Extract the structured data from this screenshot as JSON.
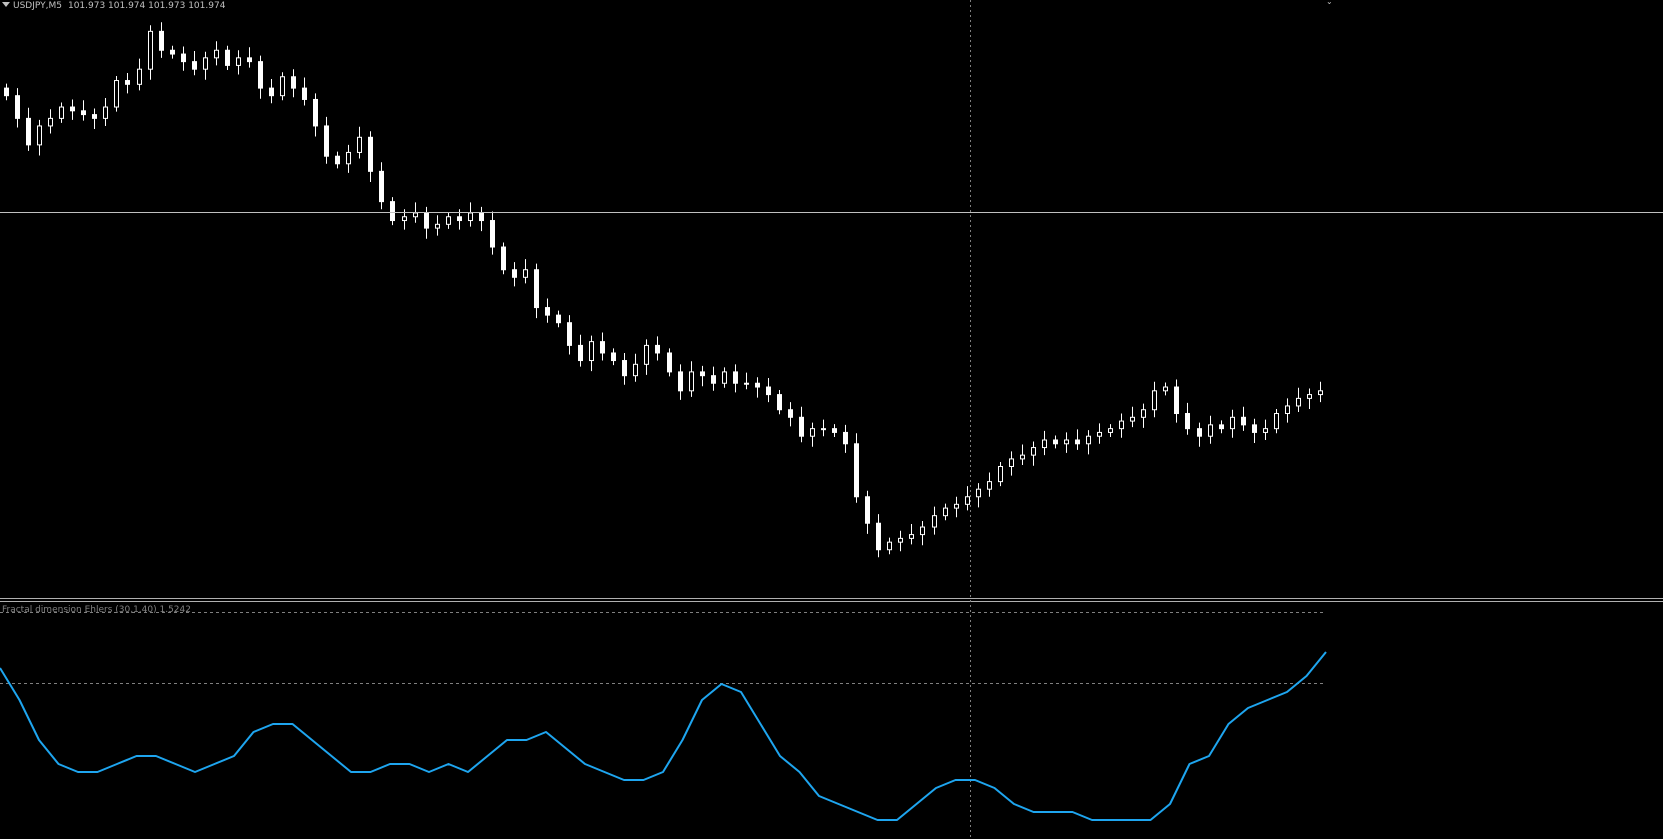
{
  "window": {
    "symbol_timeframe": "USDJPY,M5",
    "prices": "101.973 101.974 101.973 101.974"
  },
  "indicator": {
    "label": "Fractal dimension Ehlers (30,1.40) 1.5242",
    "line_color": "#1ea5ef"
  },
  "colors": {
    "background": "#000000",
    "candle": "#ffffff",
    "grid": "#808080",
    "bid_line": "#c0c0c0"
  },
  "icons": {
    "menu": "triangle-down-icon",
    "corner": "scroll-marker-icon"
  },
  "chart_data": [
    {
      "type": "candlestick",
      "title": "USDJPY,M5",
      "close_series": [
        102.28,
        102.22,
        102.15,
        102.2,
        102.22,
        102.25,
        102.24,
        102.23,
        102.22,
        102.25,
        102.32,
        102.31,
        102.35,
        102.45,
        102.4,
        102.39,
        102.37,
        102.35,
        102.38,
        102.4,
        102.36,
        102.38,
        102.37,
        102.3,
        102.28,
        102.33,
        102.3,
        102.27,
        102.2,
        102.12,
        102.1,
        102.13,
        102.17,
        102.08,
        102.0,
        101.95,
        101.96,
        101.97,
        101.93,
        101.94,
        101.96,
        101.95,
        101.97,
        101.95,
        101.88,
        101.82,
        101.8,
        101.82,
        101.72,
        101.7,
        101.68,
        101.62,
        101.58,
        101.63,
        101.6,
        101.58,
        101.54,
        101.57,
        101.62,
        101.6,
        101.55,
        101.5,
        101.55,
        101.54,
        101.52,
        101.55,
        101.52,
        101.52,
        101.51,
        101.49,
        101.45,
        101.43,
        101.38,
        101.4,
        101.4,
        101.39,
        101.36,
        101.22,
        101.15,
        101.08,
        101.1,
        101.11,
        101.12,
        101.14,
        101.17,
        101.19,
        101.2,
        101.22,
        101.24,
        101.26,
        101.3,
        101.32,
        101.33,
        101.35,
        101.37,
        101.36,
        101.37,
        101.36,
        101.38,
        101.39,
        101.4,
        101.42,
        101.43,
        101.45,
        101.5,
        101.51,
        101.44,
        101.4,
        101.38,
        101.41,
        101.4,
        101.43,
        101.41,
        101.39,
        101.4,
        101.44,
        101.46,
        101.48,
        101.49,
        101.5
      ],
      "bid_price": 101.973
    },
    {
      "type": "line",
      "title": "Fractal dimension Ehlers (30,1.40) 1.5242",
      "last_value": 1.5242,
      "series": [
        {
          "values": [
            1.5,
            1.46,
            1.41,
            1.38,
            1.37,
            1.37,
            1.38,
            1.39,
            1.39,
            1.38,
            1.37,
            1.38,
            1.39,
            1.42,
            1.43,
            1.43,
            1.41,
            1.39,
            1.37,
            1.37,
            1.38,
            1.38,
            1.37,
            1.38,
            1.37,
            1.39,
            1.41,
            1.41,
            1.42,
            1.4,
            1.38,
            1.37,
            1.36,
            1.36,
            1.37,
            1.41,
            1.46,
            1.48,
            1.47,
            1.43,
            1.39,
            1.37,
            1.34,
            1.33,
            1.32,
            1.31,
            1.31,
            1.33,
            1.35,
            1.36,
            1.36,
            1.35,
            1.33,
            1.32,
            1.32,
            1.32,
            1.31,
            1.31,
            1.31,
            1.31,
            1.33,
            1.38,
            1.39,
            1.43,
            1.45,
            1.46,
            1.47,
            1.49,
            1.52
          ]
        }
      ]
    }
  ]
}
